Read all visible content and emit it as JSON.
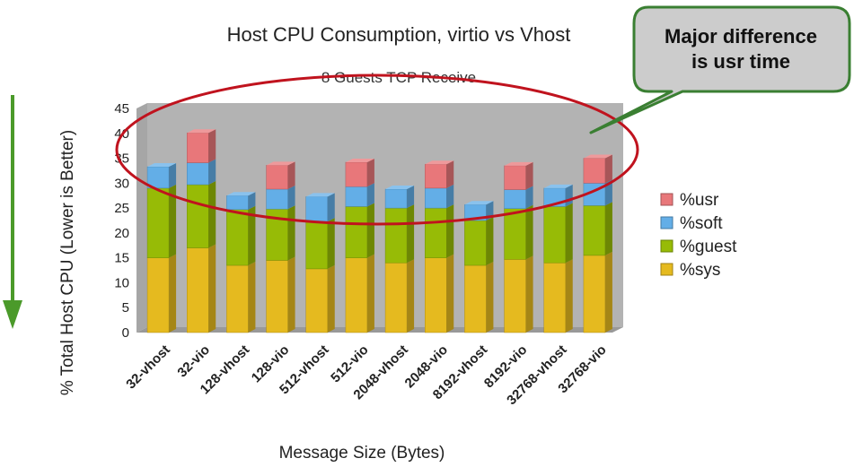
{
  "chart_data": {
    "type": "bar",
    "stacked": true,
    "title": "Host CPU Consumption, virtio vs Vhost",
    "subtitle": "8 Guests TCP Receive",
    "xlabel": "Message Size (Bytes)",
    "ylabel": "% Total Host CPU (Lower is Better)",
    "ylim": [
      0,
      45
    ],
    "yticks": [
      0,
      5,
      10,
      15,
      20,
      25,
      30,
      35,
      40,
      45
    ],
    "categories": [
      "32-vhost",
      "32-vio",
      "128-vhost",
      "128-vio",
      "512-vhost",
      "512-vio",
      "2048-vhost",
      "2048-vio",
      "8192-vhost",
      "8192-vio",
      "32768-vhost",
      "32768-vio"
    ],
    "series": [
      {
        "name": "%sys",
        "color": "#e5ba1f",
        "values": [
          15.0,
          17.0,
          13.5,
          14.5,
          12.8,
          15.0,
          14.0,
          15.0,
          13.5,
          14.7,
          14.0,
          15.5
        ]
      },
      {
        "name": "%guest",
        "color": "#97bb06",
        "values": [
          14.0,
          12.7,
          11.2,
          10.3,
          9.5,
          10.3,
          11.0,
          10.0,
          9.0,
          10.2,
          11.3,
          10.0
        ]
      },
      {
        "name": "%soft",
        "color": "#63aee7",
        "values": [
          4.3,
          4.4,
          2.8,
          4.0,
          5.0,
          4.0,
          3.8,
          4.0,
          3.2,
          3.8,
          3.7,
          4.5
        ]
      },
      {
        "name": "%usr",
        "color": "#e8777a",
        "values": [
          0.0,
          6.0,
          0.0,
          4.8,
          0.0,
          4.9,
          0.0,
          4.8,
          0.0,
          4.8,
          0.0,
          5.0
        ]
      }
    ],
    "legend_position": "right",
    "grid": false
  },
  "callout": {
    "line1": "Major difference",
    "line2": "is usr time"
  },
  "colors": {
    "plot_wall": "#b3b3b3",
    "plot_floor": "#999999",
    "ellipse": "#c0131e",
    "callout_fill": "#cccccc",
    "callout_border": "#3a7f32",
    "arrow": "#4b9a2a"
  }
}
